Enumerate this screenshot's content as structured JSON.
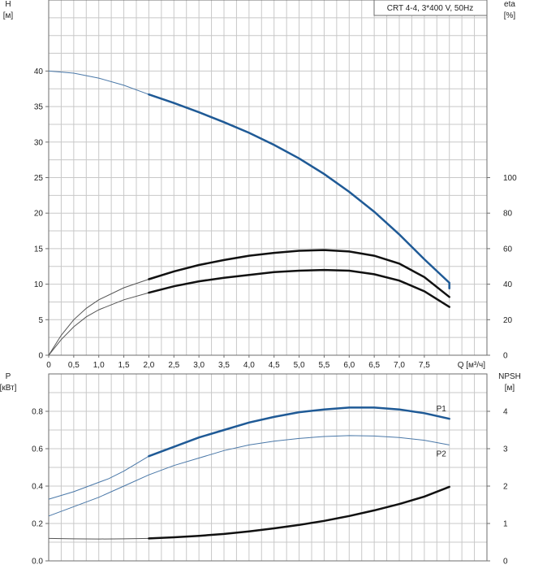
{
  "colors": {
    "grid": "#c8c8c8",
    "border": "#6e6e6e",
    "blue": "#1f5a96",
    "blue_thin": "#4a78a8",
    "black": "#111111",
    "thin_black": "#555555"
  },
  "legend": {
    "text": "CRT 4-4, 3*400 V, 50Hz"
  },
  "chart_data": [
    {
      "type": "line",
      "id": "upper",
      "x_axis": {
        "label": "Q [м³/ч]",
        "range": [
          0,
          8.75
        ],
        "ticks": [
          0,
          0.5,
          1.0,
          1.5,
          2.0,
          2.5,
          3.0,
          3.5,
          4.0,
          4.5,
          5.0,
          5.5,
          6.0,
          6.5,
          7.0,
          7.5
        ],
        "tick_labels": [
          "0",
          "0,5",
          "1,0",
          "1,5",
          "2,0",
          "2,5",
          "3,0",
          "3,5",
          "4,0",
          "4,5",
          "5,0",
          "5,5",
          "6,0",
          "6,5",
          "7,0",
          "7,5"
        ]
      },
      "y_left": {
        "title": "H",
        "unit": "[м]",
        "range": [
          0,
          50
        ],
        "ticks": [
          0,
          5,
          10,
          15,
          20,
          25,
          30,
          35,
          40
        ],
        "tick_labels": [
          "0",
          "5",
          "10",
          "15",
          "20",
          "25",
          "30",
          "35",
          "40"
        ]
      },
      "y_right": {
        "title": "eta",
        "unit": "[%]",
        "range": [
          0,
          200
        ],
        "ticks": [
          0,
          20,
          40,
          60,
          80,
          100
        ],
        "tick_labels": [
          "0",
          "20",
          "40",
          "60",
          "80",
          "100"
        ]
      },
      "grid": true,
      "series": [
        {
          "key": "head",
          "axis": "left",
          "color": "blue",
          "thin_points": [
            [
              0,
              40
            ],
            [
              0.5,
              39.7
            ],
            [
              1.0,
              39.0
            ],
            [
              1.5,
              38.0
            ],
            [
              2.0,
              36.7
            ]
          ],
          "thick_points": [
            [
              2.0,
              36.7
            ],
            [
              2.5,
              35.5
            ],
            [
              3.0,
              34.2
            ],
            [
              3.5,
              32.8
            ],
            [
              4.0,
              31.3
            ],
            [
              4.5,
              29.6
            ],
            [
              5.0,
              27.7
            ],
            [
              5.5,
              25.5
            ],
            [
              6.0,
              23.0
            ],
            [
              6.5,
              20.2
            ],
            [
              7.0,
              17.0
            ],
            [
              7.5,
              13.5
            ],
            [
              8.0,
              10.2
            ],
            [
              8.0,
              9.4
            ]
          ]
        },
        {
          "key": "eta_upper",
          "axis": "left",
          "color": "black",
          "thin_points": [
            [
              0,
              0
            ],
            [
              0.25,
              2.8
            ],
            [
              0.5,
              5.0
            ],
            [
              0.75,
              6.6
            ],
            [
              1.0,
              7.8
            ],
            [
              1.5,
              9.5
            ],
            [
              2.0,
              10.7
            ]
          ],
          "thick_points": [
            [
              2.0,
              10.7
            ],
            [
              2.5,
              11.8
            ],
            [
              3.0,
              12.7
            ],
            [
              3.5,
              13.4
            ],
            [
              4.0,
              14.0
            ],
            [
              4.5,
              14.4
            ],
            [
              5.0,
              14.7
            ],
            [
              5.5,
              14.8
            ],
            [
              6.0,
              14.6
            ],
            [
              6.5,
              14.0
            ],
            [
              7.0,
              12.9
            ],
            [
              7.5,
              11.0
            ],
            [
              8.0,
              8.2
            ]
          ]
        },
        {
          "key": "eta_lower",
          "axis": "left",
          "color": "black",
          "thin_points": [
            [
              0,
              0
            ],
            [
              0.25,
              2.2
            ],
            [
              0.5,
              4.0
            ],
            [
              0.75,
              5.4
            ],
            [
              1.0,
              6.4
            ],
            [
              1.5,
              7.8
            ],
            [
              2.0,
              8.8
            ]
          ],
          "thick_points": [
            [
              2.0,
              8.8
            ],
            [
              2.5,
              9.7
            ],
            [
              3.0,
              10.4
            ],
            [
              3.5,
              10.9
            ],
            [
              4.0,
              11.3
            ],
            [
              4.5,
              11.7
            ],
            [
              5.0,
              11.9
            ],
            [
              5.5,
              12.0
            ],
            [
              6.0,
              11.9
            ],
            [
              6.5,
              11.4
            ],
            [
              7.0,
              10.5
            ],
            [
              7.5,
              9.0
            ],
            [
              8.0,
              6.8
            ]
          ]
        }
      ]
    },
    {
      "type": "line",
      "id": "lower",
      "x_axis": {
        "range": [
          0,
          8.75
        ]
      },
      "y_left": {
        "title": "P",
        "unit": "[кВт]",
        "range": [
          0,
          1.0
        ],
        "ticks": [
          0,
          0.2,
          0.4,
          0.6,
          0.8
        ],
        "tick_labels": [
          "0.0",
          "0.2",
          "0.4",
          "0.6",
          "0.8"
        ]
      },
      "y_right": {
        "title": "NPSH",
        "unit": "[м]",
        "range": [
          0,
          5
        ],
        "ticks": [
          0,
          1,
          2,
          3,
          4
        ],
        "tick_labels": [
          "0",
          "1",
          "2",
          "3",
          "4"
        ]
      },
      "grid": true,
      "series": [
        {
          "key": "P1",
          "name": "P1",
          "axis": "left",
          "color": "blue",
          "thin_points": [
            [
              0,
              0.33
            ],
            [
              0.5,
              0.37
            ],
            [
              1.0,
              0.42
            ],
            [
              1.2,
              0.44
            ],
            [
              1.5,
              0.48
            ],
            [
              2.0,
              0.56
            ]
          ],
          "thick_points": [
            [
              2.0,
              0.56
            ],
            [
              2.5,
              0.61
            ],
            [
              3.0,
              0.66
            ],
            [
              3.5,
              0.7
            ],
            [
              4.0,
              0.74
            ],
            [
              4.5,
              0.77
            ],
            [
              5.0,
              0.795
            ],
            [
              5.5,
              0.81
            ],
            [
              6.0,
              0.82
            ],
            [
              6.5,
              0.82
            ],
            [
              7.0,
              0.81
            ],
            [
              7.5,
              0.79
            ],
            [
              8.0,
              0.76
            ]
          ]
        },
        {
          "key": "P2",
          "name": "P2",
          "axis": "left",
          "color": "blue",
          "thin_points": [
            [
              0,
              0.24
            ],
            [
              0.5,
              0.29
            ],
            [
              1.0,
              0.34
            ],
            [
              1.5,
              0.4
            ],
            [
              2.0,
              0.46
            ],
            [
              2.5,
              0.51
            ],
            [
              3.0,
              0.55
            ],
            [
              3.5,
              0.59
            ],
            [
              4.0,
              0.62
            ],
            [
              4.5,
              0.64
            ],
            [
              5.0,
              0.655
            ],
            [
              5.5,
              0.665
            ],
            [
              6.0,
              0.67
            ],
            [
              6.5,
              0.668
            ],
            [
              7.0,
              0.66
            ],
            [
              7.5,
              0.645
            ],
            [
              8.0,
              0.62
            ]
          ],
          "thick_points": []
        },
        {
          "key": "npsh",
          "axis": "right",
          "color": "black",
          "thin_points": [
            [
              0,
              0.6
            ],
            [
              0.5,
              0.59
            ],
            [
              1.0,
              0.585
            ],
            [
              1.5,
              0.59
            ],
            [
              2.0,
              0.6
            ]
          ],
          "thick_points": [
            [
              2.0,
              0.6
            ],
            [
              2.5,
              0.63
            ],
            [
              3.0,
              0.67
            ],
            [
              3.5,
              0.72
            ],
            [
              4.0,
              0.79
            ],
            [
              4.5,
              0.87
            ],
            [
              5.0,
              0.96
            ],
            [
              5.5,
              1.07
            ],
            [
              6.0,
              1.2
            ],
            [
              6.5,
              1.35
            ],
            [
              7.0,
              1.52
            ],
            [
              7.5,
              1.72
            ],
            [
              8.0,
              1.98
            ]
          ]
        }
      ]
    }
  ]
}
